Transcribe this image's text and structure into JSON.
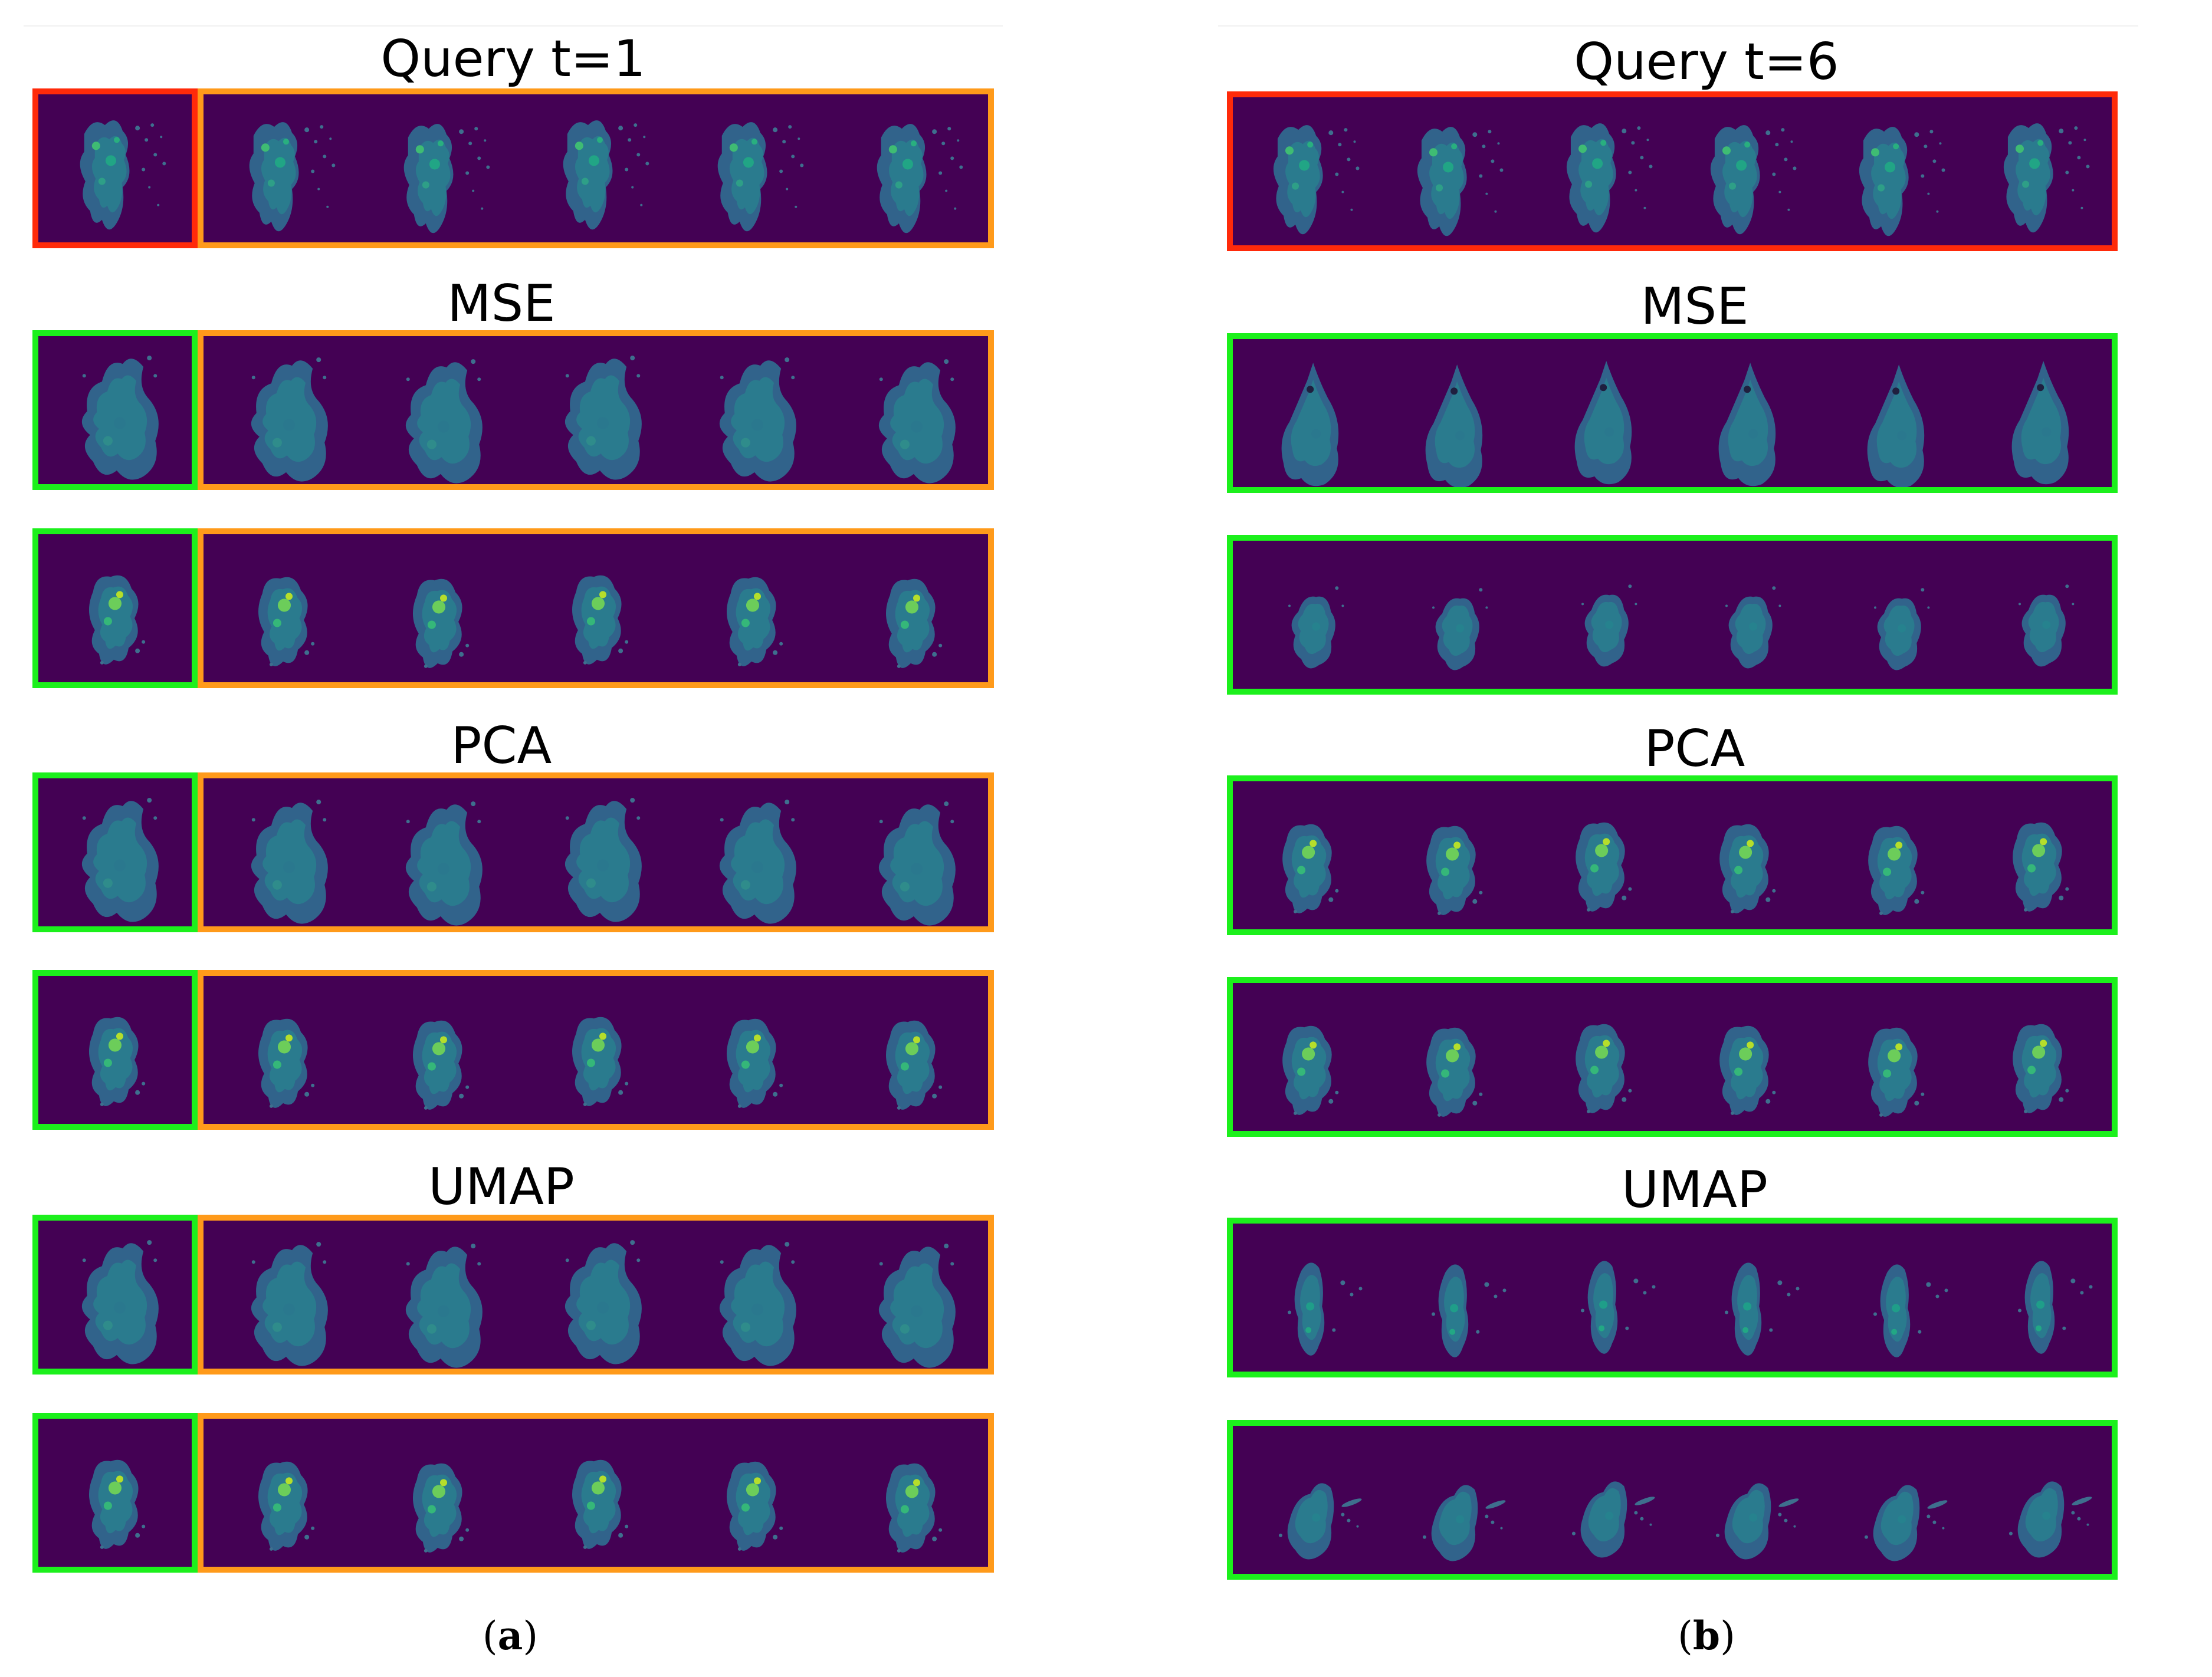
{
  "colors": {
    "query_border": "#ff2a0a",
    "match_border": "#1cf01c",
    "context_border": "#ff9a1a",
    "background": "#440154"
  },
  "panels": [
    {
      "id": "a",
      "caption_letter": "a",
      "sections": [
        {
          "title": "Query t=1",
          "rows": [
            {
              "role": "query",
              "split": true,
              "kind": "sparse"
            }
          ]
        },
        {
          "title": "MSE",
          "rows": [
            {
              "role": "match",
              "split": true,
              "kind": "large"
            },
            {
              "role": "match",
              "split": true,
              "kind": "compact"
            }
          ]
        },
        {
          "title": "PCA",
          "rows": [
            {
              "role": "match",
              "split": true,
              "kind": "large"
            },
            {
              "role": "match",
              "split": true,
              "kind": "compact"
            }
          ]
        },
        {
          "title": "UMAP",
          "rows": [
            {
              "role": "match",
              "split": true,
              "kind": "large"
            },
            {
              "role": "match",
              "split": true,
              "kind": "compact"
            }
          ]
        }
      ]
    },
    {
      "id": "b",
      "caption_letter": "b",
      "sections": [
        {
          "title": "Query t=6",
          "rows": [
            {
              "role": "query",
              "split": false,
              "kind": "sparse"
            }
          ]
        },
        {
          "title": "MSE",
          "rows": [
            {
              "role": "match",
              "split": false,
              "kind": "pointed"
            },
            {
              "role": "match",
              "split": false,
              "kind": "small"
            }
          ]
        },
        {
          "title": "PCA",
          "rows": [
            {
              "role": "match",
              "split": false,
              "kind": "compact"
            },
            {
              "role": "match",
              "split": false,
              "kind": "compact"
            }
          ]
        },
        {
          "title": "UMAP",
          "rows": [
            {
              "role": "match",
              "split": false,
              "kind": "narrow"
            },
            {
              "role": "match",
              "split": false,
              "kind": "streaky"
            }
          ]
        }
      ]
    }
  ]
}
